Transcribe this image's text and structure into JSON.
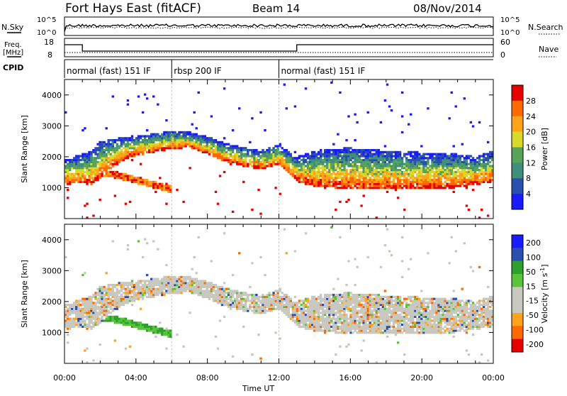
{
  "header": {
    "station": "Fort Hays East (fitACF)",
    "beam": "Beam 14",
    "date": "08/Nov/2014"
  },
  "top_panels": {
    "nsky_label": "N.Sky",
    "nsky_ticks": [
      "10^5",
      "10^0"
    ],
    "nsearch_label": "N.Search",
    "nsearch_ticks": [
      "10^5",
      "10^0"
    ],
    "freq_label": "Freq.",
    "freq_unit": "[MHz]",
    "freq_ticks": [
      "18",
      "8"
    ],
    "nave_label": "Nave",
    "nave_ticks": [
      "60",
      "0"
    ],
    "cpid_label": "CPID",
    "cpid_segments": [
      {
        "label": "normal (fast) 151 IF",
        "start_hour": 0,
        "end_hour": 6
      },
      {
        "label": "rbsp 200 IF",
        "start_hour": 6,
        "end_hour": 12
      },
      {
        "label": "normal (fast) 151 IF",
        "start_hour": 12,
        "end_hour": 24
      }
    ]
  },
  "colors": {
    "power": [
      "#1a1aff",
      "#2b4fae",
      "#3f8f7a",
      "#57a35a",
      "#d9d92a",
      "#ffa31a",
      "#ff6a00",
      "#e60000"
    ],
    "velocity": [
      "#e60000",
      "#ff6a00",
      "#ffa31a",
      "#c8c8c0",
      "#c8c8c0",
      "#57c43a",
      "#2ea02e",
      "#2b4fae",
      "#1a1aff"
    ]
  },
  "chart_data": [
    {
      "type": "heatmap",
      "title": "Power",
      "ylabel": "Slant Range [km]",
      "xlabel": "Time UT",
      "x_ticks": [
        "00:00",
        "04:00",
        "08:00",
        "12:00",
        "16:00",
        "20:00",
        "00:00"
      ],
      "y_ticks": [
        "1000",
        "2000",
        "3000",
        "4000"
      ],
      "ylim": [
        0,
        4500
      ],
      "xlim_hours": [
        0,
        24
      ],
      "colorbar_label": "Power [dB]",
      "colorbar_ticks": [
        "4",
        "8",
        "12",
        "16",
        "20",
        "24",
        "28"
      ],
      "colorbar_range": [
        0,
        32
      ],
      "echo_band": {
        "hours": [
          0,
          1,
          1.5,
          2,
          3,
          4,
          5,
          6,
          7,
          8,
          9,
          10,
          11,
          12,
          12.5,
          13,
          14,
          16,
          18,
          20,
          22,
          23,
          24
        ],
        "lower_km": [
          1100,
          1150,
          1100,
          1300,
          1800,
          2050,
          2150,
          2250,
          2300,
          2100,
          1850,
          1700,
          1600,
          1750,
          1500,
          1200,
          1050,
          950,
          950,
          950,
          1000,
          1100,
          1200
        ],
        "upper_km": [
          1900,
          2100,
          2200,
          2500,
          2600,
          2700,
          2750,
          2850,
          2800,
          2650,
          2450,
          2300,
          2200,
          2400,
          2200,
          2000,
          2200,
          2300,
          2200,
          2150,
          2100,
          2000,
          2200
        ]
      },
      "secondary_band": {
        "hours": [
          2,
          3,
          4,
          5,
          6
        ],
        "center_km": [
          1500,
          1400,
          1250,
          1100,
          950
        ]
      }
    },
    {
      "type": "heatmap",
      "title": "Velocity",
      "ylabel": "Slant Range [km]",
      "xlabel": "Time UT",
      "x_ticks": [
        "00:00",
        "04:00",
        "08:00",
        "12:00",
        "16:00",
        "20:00",
        "00:00"
      ],
      "y_ticks": [
        "1000",
        "2000",
        "3000",
        "4000"
      ],
      "ylim": [
        0,
        4500
      ],
      "xlim_hours": [
        0,
        24
      ],
      "colorbar_label": "Velocity [m s^-1]",
      "colorbar_ticks": [
        "200",
        "100",
        "50",
        "15",
        "-15",
        "-50",
        "-100",
        "-200"
      ],
      "colorbar_range": [
        -250,
        250
      ]
    }
  ],
  "xlabel": "Time UT"
}
